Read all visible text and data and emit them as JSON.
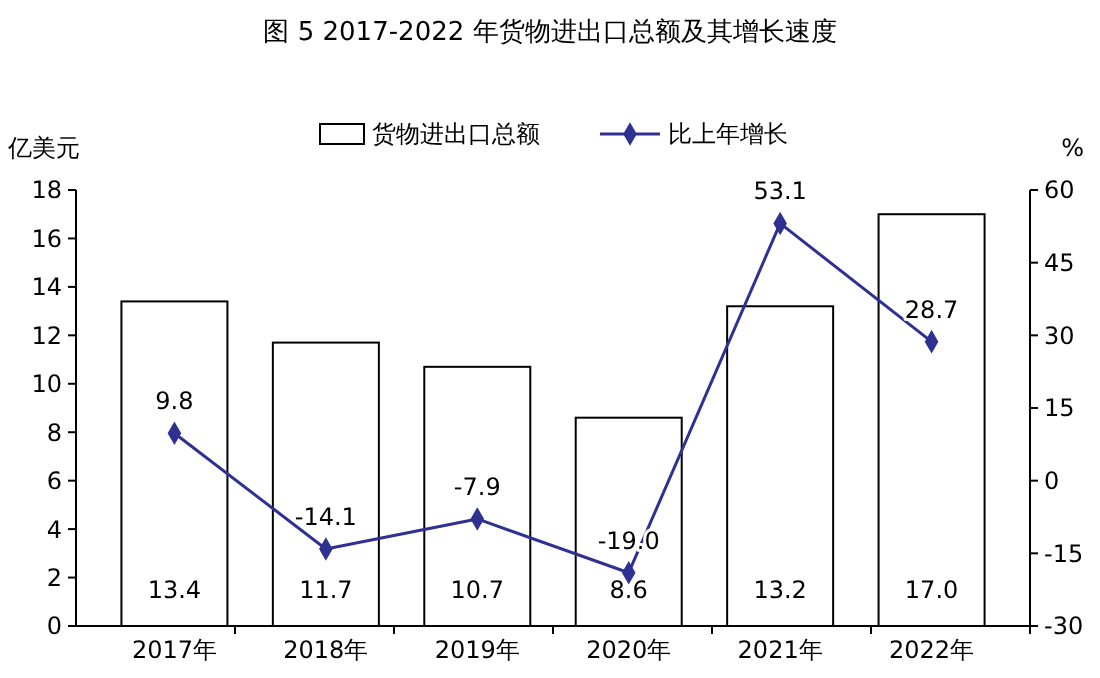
{
  "chart_data": {
    "type": "bar",
    "title": "图 5 2017-2022 年货物进出口总额及其增长速度",
    "ylabel": "亿美元",
    "y2label": "%",
    "categories": [
      "2017年",
      "2018年",
      "2019年",
      "2020年",
      "2021年",
      "2022年"
    ],
    "series": [
      {
        "name": "货物进出口总额",
        "color": "#ffffff",
        "values": [
          13.4,
          11.7,
          10.7,
          8.6,
          13.2,
          17.0
        ],
        "value_labels": [
          "13.4",
          "11.7",
          "10.7",
          "8.6",
          "13.2",
          "17.0"
        ]
      },
      {
        "name": "比上年增长",
        "type": "line",
        "axis": "y2",
        "color": "#2e3192",
        "marker": "diamond",
        "values": [
          9.8,
          -14.1,
          -7.9,
          -19.0,
          53.1,
          28.7
        ],
        "value_labels": [
          "9.8",
          "-14.1",
          "-7.9",
          "-19.0",
          "53.1",
          "28.7"
        ]
      }
    ],
    "ylim": [
      0,
      18
    ],
    "yticks": [
      0,
      2,
      4,
      6,
      8,
      10,
      12,
      14,
      16,
      18
    ],
    "y2lim": [
      -30,
      60
    ],
    "y2ticks": [
      -30,
      -15,
      0,
      15,
      30,
      45,
      60
    ],
    "grid": false,
    "legend": "top"
  }
}
